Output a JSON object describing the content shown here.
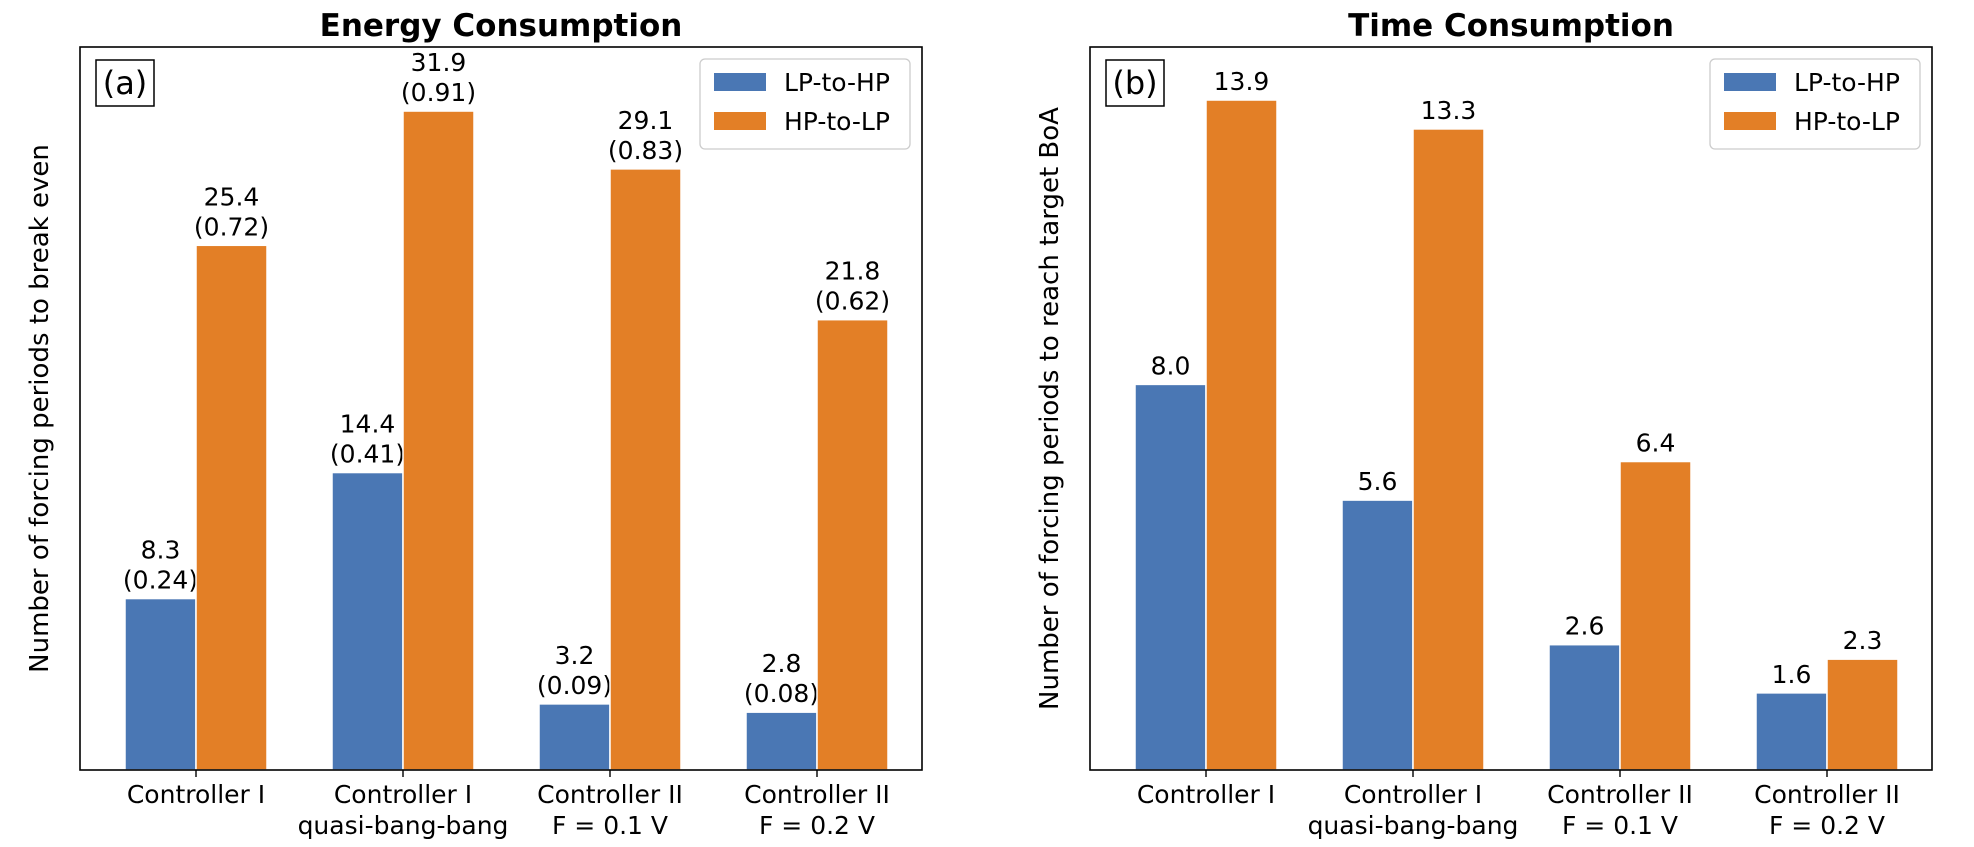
{
  "colors": {
    "lp_to_hp": "#4a77b4",
    "hp_to_lp": "#e37f26"
  },
  "chart_data": [
    {
      "type": "bar",
      "title": "Energy Consumption",
      "panel_tag": "(a)",
      "xlabel": "",
      "ylabel": "Number of forcing periods to break even",
      "ylim": [
        0,
        35
      ],
      "y_ticks_shown": false,
      "grid": false,
      "legend_position": "top-right",
      "categories": [
        [
          "Controller I"
        ],
        [
          "Controller I",
          "quasi-bang-bang"
        ],
        [
          "Controller II",
          "F = 0.1 V"
        ],
        [
          "Controller II",
          "F = 0.2 V"
        ]
      ],
      "series": [
        {
          "name": "LP-to-HP",
          "values": [
            8.3,
            14.4,
            3.2,
            2.8
          ],
          "labels": [
            [
              "8.3",
              "(0.24)"
            ],
            [
              "14.4",
              "(0.41)"
            ],
            [
              "3.2",
              "(0.09)"
            ],
            [
              "2.8",
              "(0.08)"
            ]
          ]
        },
        {
          "name": "HP-to-LP",
          "values": [
            25.4,
            31.9,
            29.1,
            21.8
          ],
          "labels": [
            [
              "25.4",
              "(0.72)"
            ],
            [
              "31.9",
              "(0.91)"
            ],
            [
              "29.1",
              "(0.83)"
            ],
            [
              "21.8",
              "(0.62)"
            ]
          ]
        }
      ]
    },
    {
      "type": "bar",
      "title": "Time Consumption",
      "panel_tag": "(b)",
      "xlabel": "",
      "ylabel": "Number of forcing periods to reach target BoA",
      "ylim": [
        0,
        15
      ],
      "y_ticks_shown": false,
      "grid": false,
      "legend_position": "top-right",
      "categories": [
        [
          "Controller I"
        ],
        [
          "Controller I",
          "quasi-bang-bang"
        ],
        [
          "Controller II",
          "F = 0.1 V"
        ],
        [
          "Controller II",
          "F = 0.2 V"
        ]
      ],
      "series": [
        {
          "name": "LP-to-HP",
          "values": [
            8.0,
            5.6,
            2.6,
            1.6
          ],
          "labels": [
            [
              "8.0"
            ],
            [
              "5.6"
            ],
            [
              "2.6"
            ],
            [
              "1.6"
            ]
          ]
        },
        {
          "name": "HP-to-LP",
          "values": [
            13.9,
            13.3,
            6.4,
            2.3
          ],
          "labels": [
            [
              "13.9"
            ],
            [
              "13.3"
            ],
            [
              "6.4"
            ],
            [
              "2.3"
            ]
          ]
        }
      ]
    }
  ]
}
